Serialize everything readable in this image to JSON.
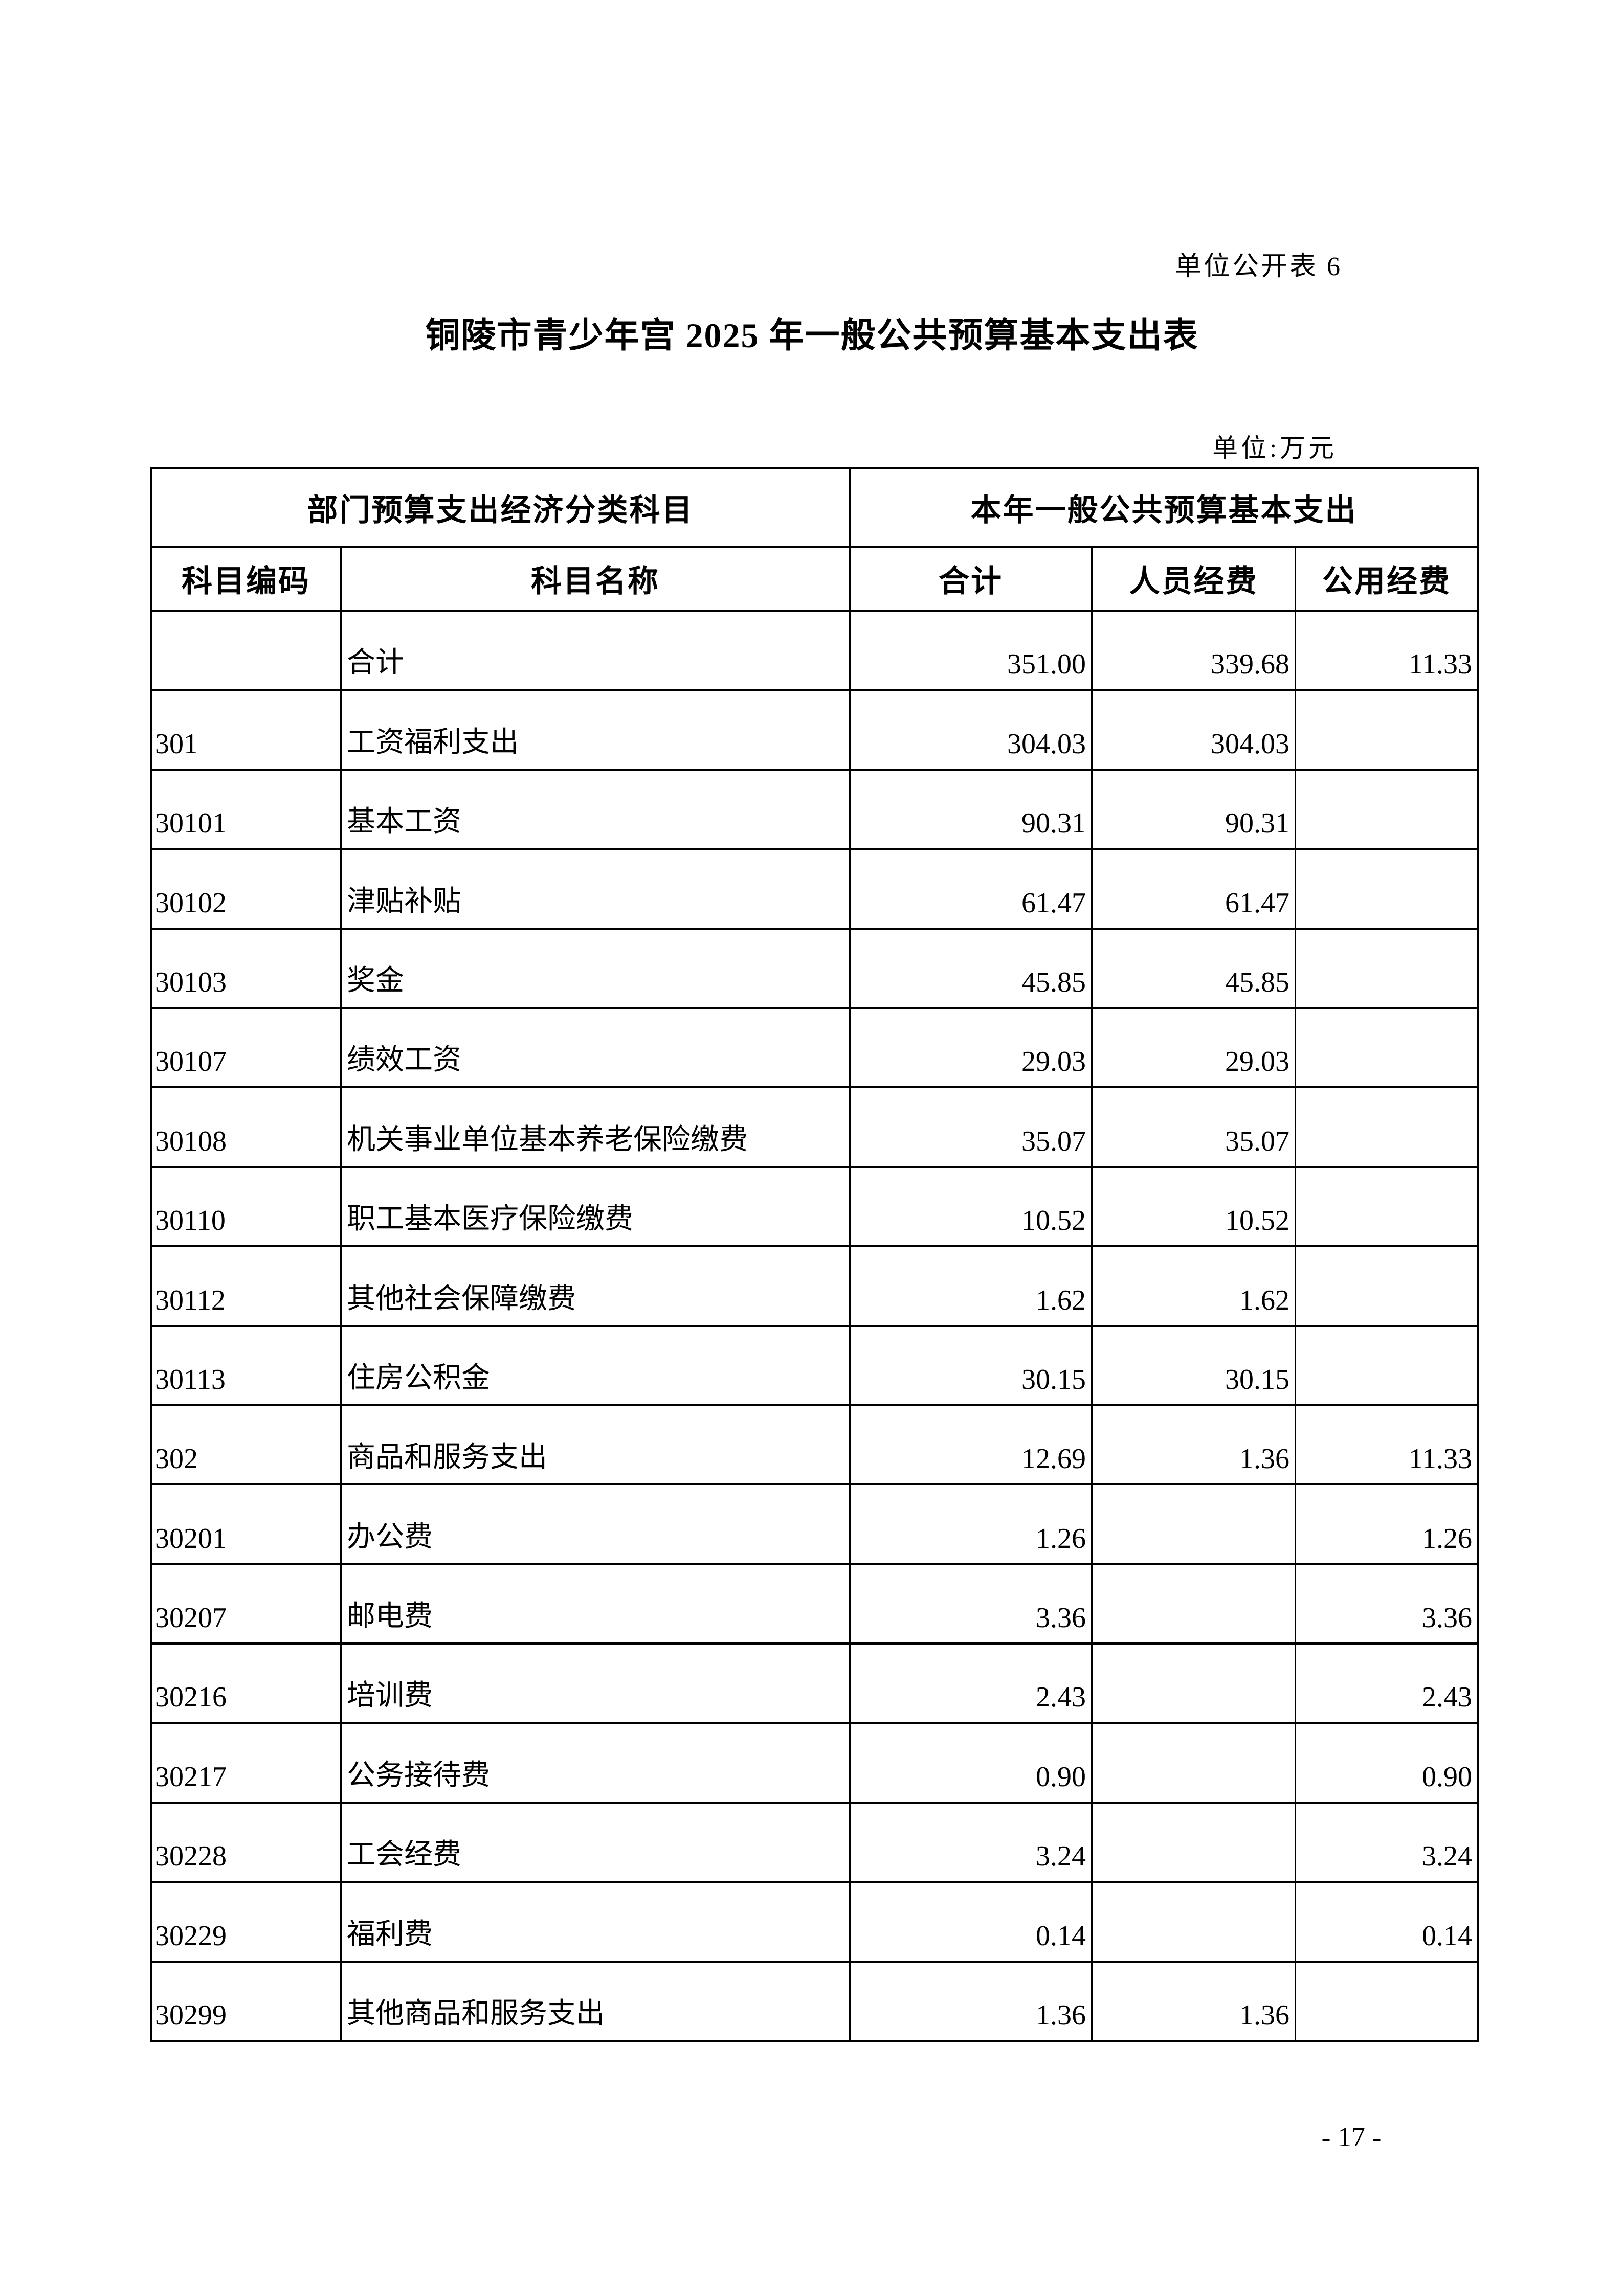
{
  "page": {
    "header_note": "单位公开表 6",
    "title": "铜陵市青少年宫 2025 年一般公共预算基本支出表",
    "unit_label": "单位:万元",
    "page_number": "- 17 -"
  },
  "table": {
    "group_headers": {
      "left": "部门预算支出经济分类科目",
      "right": "本年一般公共预算基本支出"
    },
    "columns": [
      "科目编码",
      "科目名称",
      "合计",
      "人员经费",
      "公用经费"
    ],
    "rows": [
      {
        "code": "",
        "name": "合计",
        "total": "351.00",
        "personnel": "339.68",
        "public": "11.33"
      },
      {
        "code": "301",
        "name": "工资福利支出",
        "total": "304.03",
        "personnel": "304.03",
        "public": ""
      },
      {
        "code": "30101",
        "name": "基本工资",
        "total": "90.31",
        "personnel": "90.31",
        "public": ""
      },
      {
        "code": "30102",
        "name": "津贴补贴",
        "total": "61.47",
        "personnel": "61.47",
        "public": ""
      },
      {
        "code": "30103",
        "name": "奖金",
        "total": "45.85",
        "personnel": "45.85",
        "public": ""
      },
      {
        "code": "30107",
        "name": "绩效工资",
        "total": "29.03",
        "personnel": "29.03",
        "public": ""
      },
      {
        "code": "30108",
        "name": "机关事业单位基本养老保险缴费",
        "total": "35.07",
        "personnel": "35.07",
        "public": ""
      },
      {
        "code": "30110",
        "name": "职工基本医疗保险缴费",
        "total": "10.52",
        "personnel": "10.52",
        "public": ""
      },
      {
        "code": "30112",
        "name": "其他社会保障缴费",
        "total": "1.62",
        "personnel": "1.62",
        "public": ""
      },
      {
        "code": "30113",
        "name": "住房公积金",
        "total": "30.15",
        "personnel": "30.15",
        "public": ""
      },
      {
        "code": "302",
        "name": "商品和服务支出",
        "total": "12.69",
        "personnel": "1.36",
        "public": "11.33"
      },
      {
        "code": "30201",
        "name": "办公费",
        "total": "1.26",
        "personnel": "",
        "public": "1.26"
      },
      {
        "code": "30207",
        "name": "邮电费",
        "total": "3.36",
        "personnel": "",
        "public": "3.36"
      },
      {
        "code": "30216",
        "name": "培训费",
        "total": "2.43",
        "personnel": "",
        "public": "2.43"
      },
      {
        "code": "30217",
        "name": "公务接待费",
        "total": "0.90",
        "personnel": "",
        "public": "0.90"
      },
      {
        "code": "30228",
        "name": "工会经费",
        "total": "3.24",
        "personnel": "",
        "public": "3.24"
      },
      {
        "code": "30229",
        "name": "福利费",
        "total": "0.14",
        "personnel": "",
        "public": "0.14"
      },
      {
        "code": "30299",
        "name": "其他商品和服务支出",
        "total": "1.36",
        "personnel": "1.36",
        "public": ""
      }
    ]
  }
}
